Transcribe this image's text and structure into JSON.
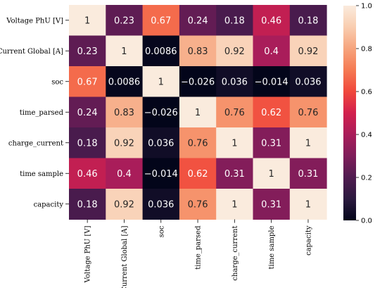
{
  "chart_data": {
    "type": "heatmap",
    "title": "",
    "xlabel": "",
    "ylabel": "",
    "row_labels": [
      "Voltage PhU [V]",
      "Current Global [A]",
      "soc",
      "time_parsed",
      "charge_current",
      "time sample",
      "capacity"
    ],
    "col_labels": [
      "Voltage PhU [V]",
      "Current Global [A]",
      "soc",
      "time_parsed",
      "charge_current",
      "time sample",
      "capacity"
    ],
    "values": [
      [
        1,
        0.23,
        0.67,
        0.24,
        0.18,
        0.46,
        0.18
      ],
      [
        0.23,
        1,
        0.0086,
        0.83,
        0.92,
        0.4,
        0.92
      ],
      [
        0.67,
        0.0086,
        1,
        -0.026,
        0.036,
        -0.014,
        0.036
      ],
      [
        0.24,
        0.83,
        -0.026,
        1,
        0.76,
        0.62,
        0.76
      ],
      [
        0.18,
        0.92,
        0.036,
        0.76,
        1,
        0.31,
        1
      ],
      [
        0.46,
        0.4,
        -0.014,
        0.62,
        0.31,
        1,
        0.31
      ],
      [
        0.18,
        0.92,
        0.036,
        0.76,
        1,
        0.31,
        1
      ]
    ],
    "annotations": [
      [
        "1",
        "0.23",
        "0.67",
        "0.24",
        "0.18",
        "0.46",
        "0.18"
      ],
      [
        "0.23",
        "1",
        "0.0086",
        "0.83",
        "0.92",
        "0.4",
        "0.92"
      ],
      [
        "0.67",
        "0.0086",
        "1",
        "−0.026",
        "0.036",
        "−0.014",
        "0.036"
      ],
      [
        "0.24",
        "0.83",
        "−0.026",
        "1",
        "0.76",
        "0.62",
        "0.76"
      ],
      [
        "0.18",
        "0.92",
        "0.036",
        "0.76",
        "1",
        "0.31",
        "1"
      ],
      [
        "0.46",
        "0.4",
        "−0.014",
        "0.62",
        "0.31",
        "1",
        "0.31"
      ],
      [
        "0.18",
        "0.92",
        "0.036",
        "0.76",
        "1",
        "0.31",
        "1"
      ]
    ],
    "colorbar": {
      "range": [
        0,
        1
      ],
      "ticks": [
        0.0,
        0.2,
        0.4,
        0.6,
        0.8,
        1.0
      ],
      "tick_labels": [
        "0.0",
        "0.2",
        "0.4",
        "0.6",
        "0.8",
        "1.0"
      ]
    },
    "colormap": "rocket",
    "colormap_stops": [
      "#03051a",
      "#2b1a3f",
      "#501b50",
      "#7f1d5a",
      "#a91d5a",
      "#d2204d",
      "#f0483c",
      "#f57a53",
      "#f6a47d",
      "#f9cdb0",
      "#faebdd"
    ]
  }
}
